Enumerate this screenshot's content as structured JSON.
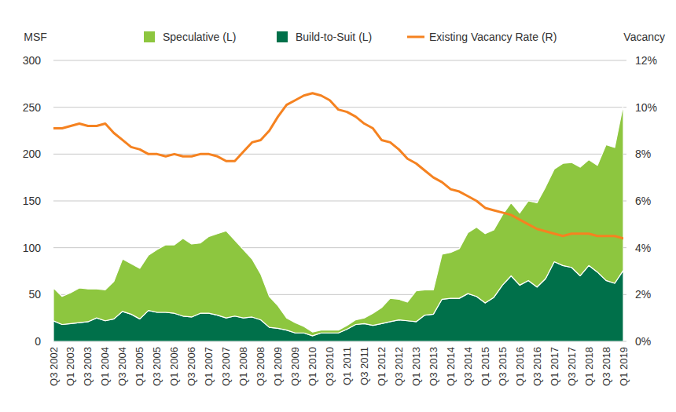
{
  "chart_data": {
    "type": "area",
    "y_label": "MSF",
    "y2_label": "Vacancy",
    "stacked": true,
    "grid": true,
    "legend": "top",
    "categories": [
      "Q3 2002",
      null,
      "Q1 2003",
      null,
      "Q3 2003",
      null,
      "Q1 2004",
      null,
      "Q3 2004",
      null,
      "Q1 2005",
      null,
      "Q3 2005",
      null,
      "Q1 2006",
      null,
      "Q3 2006",
      null,
      "Q1 2007",
      null,
      "Q3 2007",
      null,
      "Q1 2008",
      null,
      "Q3 2008",
      null,
      "Q1 2009",
      null,
      "Q3 2009",
      null,
      "Q1 2010",
      null,
      "Q3 2010",
      null,
      "Q1 2011",
      null,
      "Q3 2011",
      null,
      "Q1 2012",
      null,
      "Q3 2012",
      null,
      "Q1 2013",
      null,
      "Q3 2013",
      null,
      "Q1 2014",
      null,
      "Q3 2014",
      null,
      "Q1 2015",
      null,
      "Q3 2015",
      null,
      "Q1 2016",
      null,
      "Q3 2016",
      null,
      "Q1 2017",
      null,
      "Q3 2017",
      null,
      "Q1 2018",
      null,
      "Q3 2018",
      null,
      "Q1 2019"
    ],
    "ylim": [
      0,
      300
    ],
    "yticks": [
      0,
      50,
      100,
      150,
      200,
      250,
      300
    ],
    "y2lim": [
      0,
      12
    ],
    "y2ticks": [
      {
        "value": 0,
        "label": "0%"
      },
      {
        "value": 2,
        "label": "2%"
      },
      {
        "value": 4,
        "label": "4%"
      },
      {
        "value": 6,
        "label": "6%"
      },
      {
        "value": 8,
        "label": "8%"
      },
      {
        "value": 10,
        "label": "10%"
      },
      {
        "value": 12,
        "label": "12%"
      }
    ],
    "series": [
      {
        "name": "Speculative (L)",
        "type": "area",
        "color": "#8dc63f",
        "values": [
          35,
          30,
          33,
          37,
          35,
          31,
          33,
          40,
          56,
          54,
          54,
          59,
          67,
          72,
          73,
          83,
          78,
          75,
          82,
          87,
          93,
          81,
          73,
          62,
          49,
          33,
          24,
          13,
          11,
          7,
          4,
          3,
          3,
          3,
          4,
          5,
          6,
          13,
          17,
          25,
          22,
          20,
          33,
          27,
          26,
          48,
          49,
          53,
          65,
          74,
          74,
          72,
          75,
          78,
          77,
          85,
          90,
          98,
          99,
          109,
          112,
          116,
          113,
          114,
          145,
          145,
          177
        ]
      },
      {
        "name": "Build-to-Suit (L)",
        "type": "area",
        "color": "#00704a",
        "values": [
          22,
          18,
          19,
          20,
          21,
          25,
          22,
          24,
          32,
          29,
          24,
          33,
          31,
          31,
          30,
          27,
          26,
          30,
          30,
          28,
          25,
          27,
          25,
          26,
          23,
          15,
          14,
          12,
          9,
          9,
          6,
          9,
          9,
          9,
          13,
          18,
          19,
          17,
          19,
          21,
          23,
          22,
          21,
          28,
          29,
          45,
          46,
          46,
          51,
          48,
          41,
          47,
          60,
          70,
          60,
          65,
          58,
          67,
          85,
          81,
          79,
          70,
          81,
          74,
          65,
          62,
          76
        ]
      },
      {
        "name": "Existing Vacancy Rate (R)",
        "type": "line",
        "axis": "y2",
        "color": "#f58220",
        "values": [
          9.1,
          9.1,
          9.2,
          9.3,
          9.2,
          9.2,
          9.3,
          8.9,
          8.6,
          8.3,
          8.2,
          8.0,
          8.0,
          7.9,
          8.0,
          7.9,
          7.9,
          8.0,
          8.0,
          7.9,
          7.7,
          7.7,
          8.1,
          8.5,
          8.6,
          9.0,
          9.6,
          10.1,
          10.3,
          10.5,
          10.6,
          10.5,
          10.3,
          9.9,
          9.8,
          9.6,
          9.3,
          9.1,
          8.6,
          8.5,
          8.2,
          7.8,
          7.6,
          7.3,
          7.0,
          6.8,
          6.5,
          6.4,
          6.2,
          6.0,
          5.7,
          5.6,
          5.5,
          5.4,
          5.2,
          5.0,
          4.8,
          4.7,
          4.6,
          4.5,
          4.6,
          4.6,
          4.6,
          4.5,
          4.5,
          4.5,
          4.4
        ]
      }
    ]
  }
}
